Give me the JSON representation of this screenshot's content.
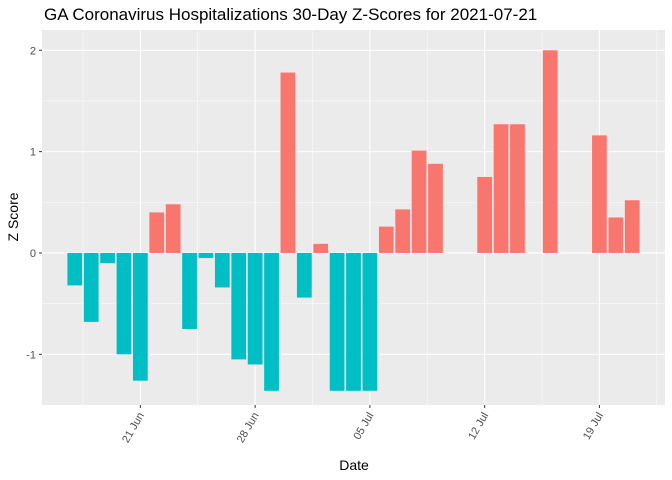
{
  "chart_data": {
    "type": "bar",
    "title": "GA Coronavirus Hospitalizations 30-Day Z-Scores for 2021-07-21",
    "x_label": "Date",
    "y_label": "Z Score",
    "x": [
      "17 Jun",
      "18 Jun",
      "19 Jun",
      "20 Jun",
      "21 Jun",
      "22 Jun",
      "23 Jun",
      "24 Jun",
      "25 Jun",
      "26 Jun",
      "27 Jun",
      "28 Jun",
      "29 Jun",
      "30 Jun",
      "01 Jul",
      "02 Jul",
      "03 Jul",
      "04 Jul",
      "05 Jul",
      "06 Jul",
      "07 Jul",
      "08 Jul",
      "09 Jul",
      "12 Jul",
      "13 Jul",
      "14 Jul",
      "16 Jul",
      "19 Jul",
      "20 Jul",
      "21 Jul"
    ],
    "values": [
      -0.32,
      -0.68,
      -0.1,
      -1.0,
      -1.26,
      0.4,
      0.48,
      -0.75,
      -0.05,
      -0.34,
      -1.05,
      -1.1,
      -1.36,
      1.78,
      -0.44,
      0.09,
      -1.36,
      -1.36,
      -1.36,
      0.26,
      0.43,
      1.01,
      0.88,
      0.75,
      1.27,
      1.27,
      2.0,
      1.16,
      0.35,
      0.52
    ],
    "positive_color": "#F8766D",
    "negative_color": "#00BFC4",
    "xlim": [
      "15 Jun",
      "23 Jul"
    ],
    "xticks": [
      "21 Jun",
      "28 Jun",
      "05 Jul",
      "12 Jul",
      "19 Jul"
    ],
    "ylim": [
      -1.5,
      2.2
    ],
    "yticks": [
      -1,
      0,
      1,
      2
    ],
    "grid": true
  }
}
